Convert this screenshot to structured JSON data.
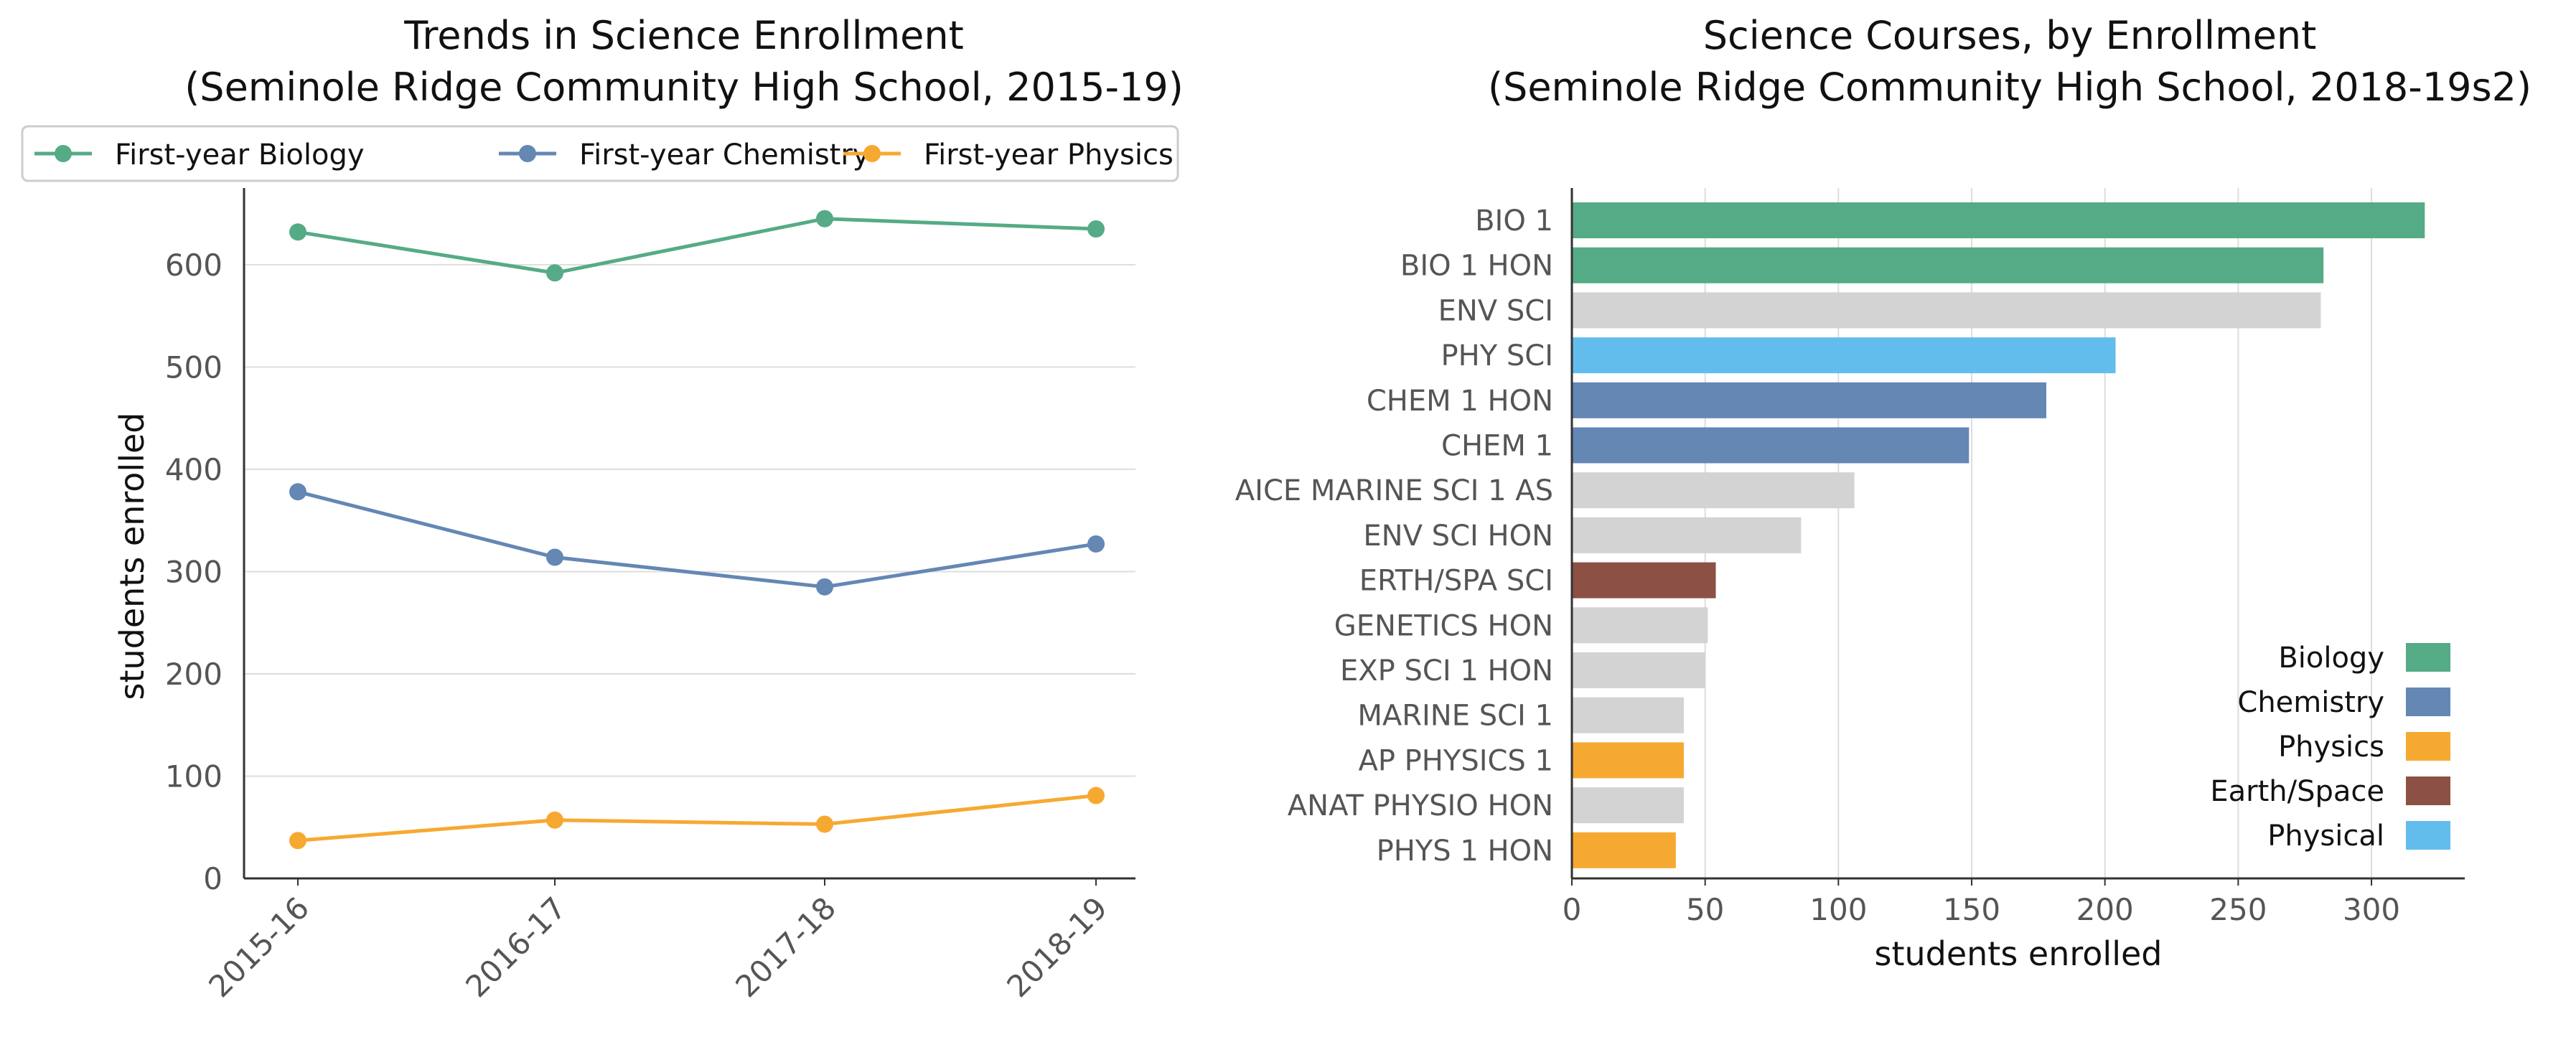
{
  "chart_data": [
    {
      "type": "line",
      "title": "Trends in Science Enrollment",
      "subtitle": "(Seminole Ridge Community High School, 2015-19)",
      "xlabel": "",
      "ylabel": "students enrolled",
      "x": [
        "2015-16",
        "2016-17",
        "2017-18",
        "2018-19"
      ],
      "yticks": [
        0,
        100,
        200,
        300,
        400,
        500,
        600
      ],
      "ylim": [
        0,
        675
      ],
      "grid": "horizontal",
      "legend": "top",
      "series": [
        {
          "name": "First-year Biology",
          "color": "#55ab86",
          "values": [
            632,
            592,
            645,
            635
          ]
        },
        {
          "name": "First-year Chemistry",
          "color": "#6487b4",
          "values": [
            378,
            314,
            285,
            327
          ]
        },
        {
          "name": "First-year Physics",
          "color": "#f6a931",
          "values": [
            37,
            57,
            53,
            81
          ]
        }
      ]
    },
    {
      "type": "bar",
      "orientation": "horizontal",
      "title": "Science Courses, by Enrollment",
      "subtitle": "(Seminole Ridge Community High School, 2018-19s2)",
      "xlabel": "students enrolled",
      "ylabel": "",
      "xticks": [
        0,
        50,
        100,
        150,
        200,
        250,
        300
      ],
      "xlim": [
        0,
        335
      ],
      "grid": "vertical",
      "legend": "lower-right",
      "legend_entries": [
        {
          "label": "Biology",
          "color": "#55ab86"
        },
        {
          "label": "Chemistry",
          "color": "#6487b4"
        },
        {
          "label": "Physics",
          "color": "#f6a931"
        },
        {
          "label": "Earth/Space",
          "color": "#8c5044"
        },
        {
          "label": "Physical",
          "color": "#63bdec"
        }
      ],
      "other_color": "#d3d3d3",
      "categories": [
        "BIO 1",
        "BIO 1 HON",
        "ENV SCI",
        "PHY SCI",
        "CHEM 1 HON",
        "CHEM 1",
        "AICE MARINE SCI 1 AS",
        "ENV SCI HON",
        "ERTH/SPA SCI",
        "GENETICS HON",
        "EXP SCI 1 HON",
        "MARINE SCI 1",
        "AP PHYSICS 1",
        "ANAT PHYSIO HON",
        "PHYS 1 HON"
      ],
      "values": [
        320,
        282,
        281,
        204,
        178,
        149,
        106,
        86,
        54,
        51,
        50,
        42,
        42,
        42,
        39
      ],
      "bar_groups": [
        "Biology",
        "Biology",
        "",
        "Physical",
        "Chemistry",
        "Chemistry",
        "",
        "",
        "Earth/Space",
        "",
        "",
        "",
        "Physics",
        "",
        "Physics"
      ]
    }
  ]
}
